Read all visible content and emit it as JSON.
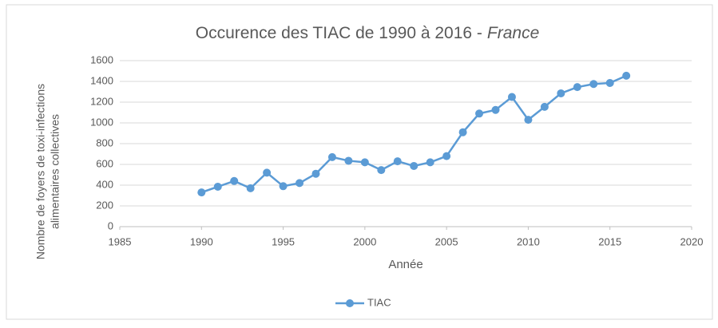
{
  "chart_data": {
    "type": "line",
    "title": [
      "Occurence des TIAC de 1990 à 2016 -",
      "France"
    ],
    "x_label": "Année",
    "y_label": [
      "Nombre de foyers de toxi-infections",
      "alimentaires collectives"
    ],
    "x": [
      1990,
      1991,
      1992,
      1993,
      1994,
      1995,
      1996,
      1997,
      1998,
      1999,
      2000,
      2001,
      2002,
      2003,
      2004,
      2005,
      2006,
      2007,
      2008,
      2009,
      2010,
      2011,
      2012,
      2013,
      2014,
      2015,
      2016
    ],
    "series": [
      {
        "name": "TIAC",
        "color": "#5b9bd5",
        "values": [
          330,
          385,
          440,
          370,
          520,
          390,
          420,
          510,
          670,
          635,
          620,
          545,
          630,
          585,
          620,
          680,
          910,
          1090,
          1125,
          1250,
          1030,
          1155,
          1285,
          1345,
          1375,
          1385,
          1455
        ]
      }
    ],
    "xlim": [
      1985,
      2020
    ],
    "xticks": [
      1985,
      1990,
      1995,
      2000,
      2005,
      2010,
      2015,
      2020
    ],
    "ylim": [
      0,
      1600
    ],
    "yticks": [
      0,
      200,
      400,
      600,
      800,
      1000,
      1200,
      1400,
      1600
    ],
    "grid": true,
    "legend": "bottom"
  }
}
